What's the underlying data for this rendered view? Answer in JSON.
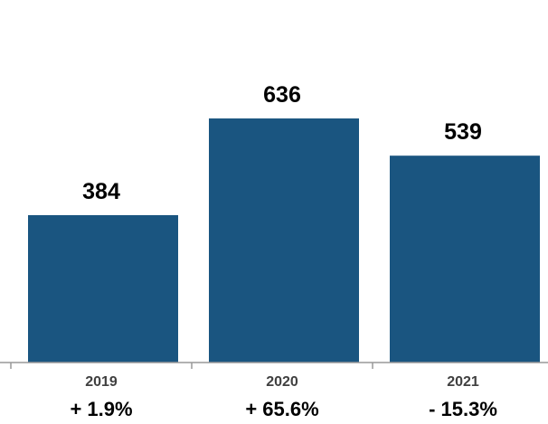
{
  "chart_data": {
    "type": "bar",
    "categories": [
      "2019",
      "2020",
      "2021"
    ],
    "values": [
      384,
      636,
      539
    ],
    "value_labels": [
      "384",
      "636",
      "539"
    ],
    "changes": [
      "+ 1.9%",
      "+ 65.6%",
      "- 15.3%"
    ],
    "bar_color": "#1a5580",
    "axis_color": "#999999",
    "title": "",
    "xlabel": "",
    "ylabel": "",
    "ylim": [
      0,
      700
    ],
    "grid": false,
    "legend": "none"
  }
}
